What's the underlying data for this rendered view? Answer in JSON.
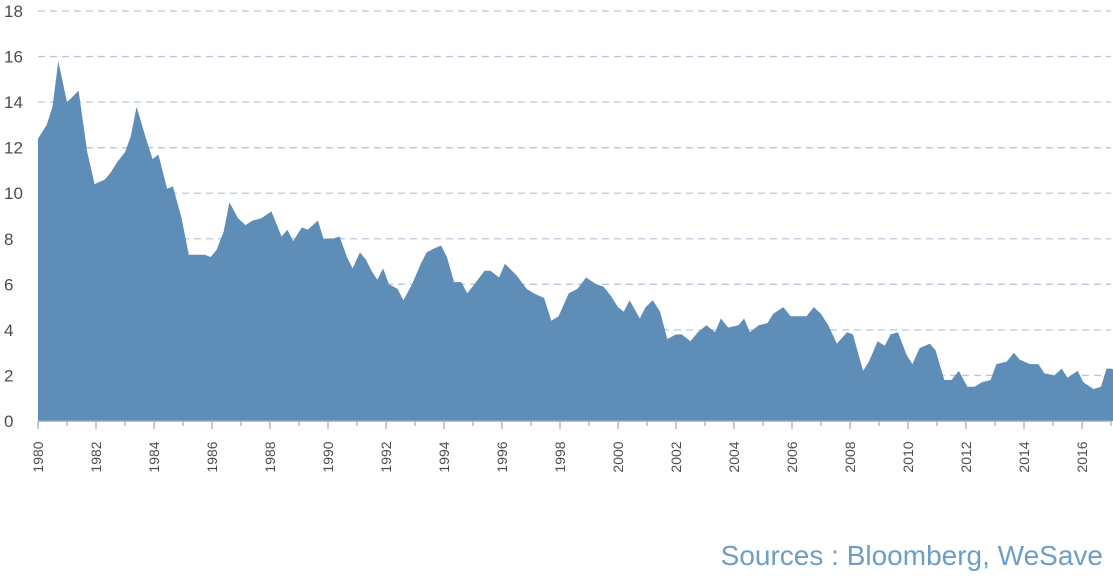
{
  "source_note": "Sources : Bloomberg, WeSave",
  "colors": {
    "area": "#5e8db8",
    "grid": "#b9c7d8",
    "axis": "#9aa8b6",
    "text": "#4d4d4d",
    "source": "#6d9ec6"
  },
  "chart_data": {
    "type": "area",
    "title": "",
    "xlabel": "",
    "ylabel": "",
    "ylim": [
      0,
      18
    ],
    "xlim": [
      1980.0,
      2017.0
    ],
    "y_ticks": [
      0,
      2,
      4,
      6,
      8,
      10,
      12,
      14,
      16,
      18
    ],
    "x_ticks": [
      1980,
      1982,
      1984,
      1986,
      1988,
      1990,
      1992,
      1994,
      1996,
      1998,
      2000,
      2002,
      2004,
      2006,
      2008,
      2010,
      2012,
      2014,
      2016
    ],
    "grid": "horizontal-dashed",
    "legend": "none",
    "series": [
      {
        "values": [
          [
            1980.0,
            12.4
          ],
          [
            1980.3,
            13.0
          ],
          [
            1980.5,
            13.8
          ],
          [
            1980.7,
            15.8
          ],
          [
            1981.0,
            14.0
          ],
          [
            1981.4,
            14.5
          ],
          [
            1981.7,
            11.8
          ],
          [
            1981.95,
            10.4
          ],
          [
            1982.3,
            10.6
          ],
          [
            1982.5,
            10.9
          ],
          [
            1982.75,
            11.4
          ],
          [
            1983.0,
            11.8
          ],
          [
            1983.2,
            12.5
          ],
          [
            1983.4,
            13.8
          ],
          [
            1983.7,
            12.5
          ],
          [
            1983.95,
            11.5
          ],
          [
            1984.15,
            11.7
          ],
          [
            1984.45,
            10.2
          ],
          [
            1984.65,
            10.3
          ],
          [
            1984.95,
            8.9
          ],
          [
            1985.2,
            7.3
          ],
          [
            1985.5,
            7.3
          ],
          [
            1985.75,
            7.3
          ],
          [
            1985.95,
            7.2
          ],
          [
            1986.15,
            7.5
          ],
          [
            1986.4,
            8.3
          ],
          [
            1986.6,
            9.6
          ],
          [
            1986.9,
            8.9
          ],
          [
            1987.15,
            8.6
          ],
          [
            1987.4,
            8.8
          ],
          [
            1987.7,
            8.9
          ],
          [
            1988.05,
            9.2
          ],
          [
            1988.4,
            8.1
          ],
          [
            1988.6,
            8.4
          ],
          [
            1988.8,
            7.9
          ],
          [
            1989.1,
            8.5
          ],
          [
            1989.3,
            8.4
          ],
          [
            1989.65,
            8.8
          ],
          [
            1989.85,
            8.0
          ],
          [
            1990.15,
            8.0
          ],
          [
            1990.4,
            8.1
          ],
          [
            1990.65,
            7.2
          ],
          [
            1990.85,
            6.7
          ],
          [
            1991.1,
            7.4
          ],
          [
            1991.3,
            7.1
          ],
          [
            1991.5,
            6.6
          ],
          [
            1991.7,
            6.2
          ],
          [
            1991.9,
            6.7
          ],
          [
            1992.1,
            6.0
          ],
          [
            1992.4,
            5.8
          ],
          [
            1992.6,
            5.3
          ],
          [
            1992.9,
            6.0
          ],
          [
            1993.2,
            6.9
          ],
          [
            1993.4,
            7.4
          ],
          [
            1993.7,
            7.6
          ],
          [
            1993.9,
            7.7
          ],
          [
            1994.1,
            7.2
          ],
          [
            1994.35,
            6.1
          ],
          [
            1994.6,
            6.1
          ],
          [
            1994.8,
            5.6
          ],
          [
            1995.05,
            6.0
          ],
          [
            1995.4,
            6.6
          ],
          [
            1995.6,
            6.6
          ],
          [
            1995.9,
            6.3
          ],
          [
            1996.1,
            6.9
          ],
          [
            1996.5,
            6.4
          ],
          [
            1996.85,
            5.8
          ],
          [
            1997.1,
            5.6
          ],
          [
            1997.45,
            5.4
          ],
          [
            1997.7,
            4.4
          ],
          [
            1997.95,
            4.6
          ],
          [
            1998.3,
            5.6
          ],
          [
            1998.6,
            5.8
          ],
          [
            1998.9,
            6.3
          ],
          [
            1999.25,
            6.0
          ],
          [
            1999.5,
            5.9
          ],
          [
            1999.75,
            5.5
          ],
          [
            2000.0,
            5.0
          ],
          [
            2000.2,
            4.8
          ],
          [
            2000.4,
            5.3
          ],
          [
            2000.75,
            4.5
          ],
          [
            2000.95,
            5.0
          ],
          [
            2001.2,
            5.3
          ],
          [
            2001.45,
            4.8
          ],
          [
            2001.7,
            3.6
          ],
          [
            2002.0,
            3.8
          ],
          [
            2002.2,
            3.8
          ],
          [
            2002.5,
            3.5
          ],
          [
            2002.75,
            3.9
          ],
          [
            2003.05,
            4.2
          ],
          [
            2003.35,
            3.9
          ],
          [
            2003.55,
            4.5
          ],
          [
            2003.8,
            4.1
          ],
          [
            2004.15,
            4.2
          ],
          [
            2004.35,
            4.5
          ],
          [
            2004.55,
            3.9
          ],
          [
            2004.85,
            4.2
          ],
          [
            2005.15,
            4.3
          ],
          [
            2005.35,
            4.7
          ],
          [
            2005.7,
            5.0
          ],
          [
            2005.95,
            4.6
          ],
          [
            2006.2,
            4.6
          ],
          [
            2006.5,
            4.6
          ],
          [
            2006.75,
            5.0
          ],
          [
            2007.0,
            4.7
          ],
          [
            2007.25,
            4.2
          ],
          [
            2007.55,
            3.4
          ],
          [
            2007.9,
            3.9
          ],
          [
            2008.1,
            3.8
          ],
          [
            2008.45,
            2.2
          ],
          [
            2008.65,
            2.6
          ],
          [
            2008.95,
            3.5
          ],
          [
            2009.2,
            3.3
          ],
          [
            2009.4,
            3.8
          ],
          [
            2009.65,
            3.9
          ],
          [
            2009.95,
            2.9
          ],
          [
            2010.15,
            2.5
          ],
          [
            2010.4,
            3.2
          ],
          [
            2010.75,
            3.4
          ],
          [
            2010.95,
            3.1
          ],
          [
            2011.25,
            1.8
          ],
          [
            2011.5,
            1.8
          ],
          [
            2011.75,
            2.2
          ],
          [
            2012.05,
            1.5
          ],
          [
            2012.3,
            1.5
          ],
          [
            2012.55,
            1.7
          ],
          [
            2012.85,
            1.8
          ],
          [
            2013.05,
            2.5
          ],
          [
            2013.4,
            2.6
          ],
          [
            2013.65,
            3.0
          ],
          [
            2013.85,
            2.7
          ],
          [
            2014.2,
            2.5
          ],
          [
            2014.5,
            2.5
          ],
          [
            2014.7,
            2.1
          ],
          [
            2015.05,
            2.0
          ],
          [
            2015.3,
            2.3
          ],
          [
            2015.5,
            1.9
          ],
          [
            2015.85,
            2.2
          ],
          [
            2016.05,
            1.7
          ],
          [
            2016.4,
            1.4
          ],
          [
            2016.65,
            1.5
          ],
          [
            2016.85,
            2.3
          ],
          [
            2017.0,
            2.3
          ],
          [
            2017.2,
            2.2
          ],
          [
            2017.45,
            2.3
          ],
          [
            2017.7,
            2.3
          ]
        ]
      }
    ]
  }
}
